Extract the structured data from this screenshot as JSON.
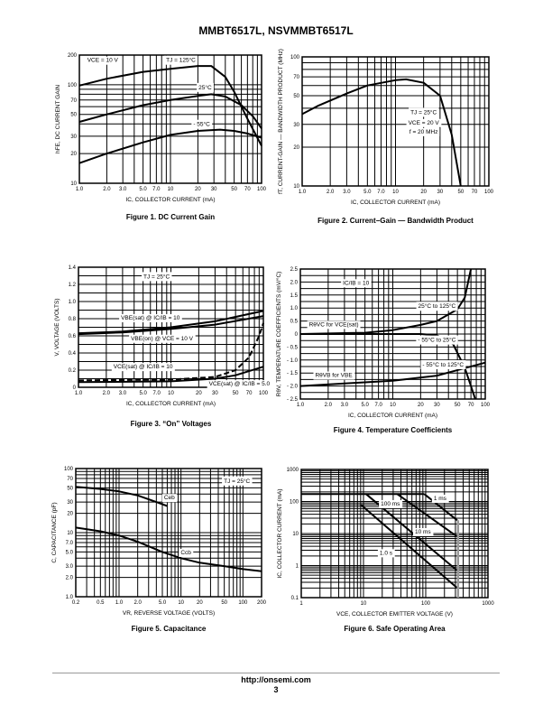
{
  "header": {
    "title": "MMBT6517L, NSVMMBT6517L"
  },
  "footer": {
    "url": "http://onsemi.com",
    "page": "3"
  },
  "chart_data": [
    {
      "type": "line",
      "title": "Figure 1. DC Current Gain",
      "xlabel": "IC, COLLECTOR CURRENT (mA)",
      "ylabel": "hFE, DC CURRENT GAIN",
      "xscale": "log",
      "yscale": "log",
      "xlim": [
        1,
        100
      ],
      "ylim": [
        10,
        200
      ],
      "xticks": [
        1,
        2,
        3,
        5,
        7,
        10,
        20,
        30,
        50,
        70,
        100
      ],
      "xtick_labels": [
        "1.0",
        "2.0",
        "3.0",
        "5.0",
        "7.0",
        "10",
        "20",
        "30",
        "50",
        "70",
        "100"
      ],
      "yticks": [
        10,
        20,
        30,
        50,
        70,
        100,
        200
      ],
      "ytick_labels": [
        "10",
        "20",
        "30",
        "50",
        "70",
        "100",
        "200"
      ],
      "annotations": [
        {
          "text": "VCE = 10 V",
          "at": [
            1.8,
            170
          ]
        },
        {
          "text": "TJ = 125°C",
          "at": [
            13,
            170
          ]
        },
        {
          "text": "25°C",
          "at": [
            24,
            90
          ]
        },
        {
          "text": "- 55°C",
          "at": [
            22,
            38
          ]
        }
      ],
      "series": [
        {
          "name": "TJ = 125°C",
          "x": [
            1,
            2,
            5,
            10,
            20,
            28,
            40,
            50,
            70,
            100
          ],
          "y": [
            98,
            115,
            135,
            145,
            155,
            155,
            120,
            85,
            45,
            24
          ]
        },
        {
          "name": "25°C",
          "x": [
            1,
            2,
            5,
            10,
            20,
            28,
            40,
            60,
            80,
            100
          ],
          "y": [
            42,
            50,
            62,
            70,
            77,
            80,
            76,
            62,
            48,
            36
          ]
        },
        {
          "name": "-55°C",
          "x": [
            1,
            2,
            5,
            10,
            20,
            35,
            50,
            70,
            100
          ],
          "y": [
            16,
            20,
            26,
            31,
            34,
            35,
            34,
            32,
            29
          ]
        }
      ]
    },
    {
      "type": "line",
      "title": "Figure 2. Current−Gain — Bandwidth Product",
      "xlabel": "IC, COLLECTOR CURRENT (mA)",
      "ylabel": "fT, CURRENT-GAIN — BANDWIDTH PRODUCT (MHz)",
      "xscale": "log",
      "yscale": "log",
      "xlim": [
        1,
        100
      ],
      "ylim": [
        10,
        100
      ],
      "xticks": [
        1,
        2,
        3,
        5,
        7,
        10,
        20,
        30,
        50,
        70,
        100
      ],
      "xtick_labels": [
        "1.0",
        "2.0",
        "3.0",
        "5.0",
        "7.0",
        "10",
        "20",
        "30",
        "50",
        "70",
        "100"
      ],
      "yticks": [
        10,
        20,
        30,
        50,
        70,
        100
      ],
      "ytick_labels": [
        "10",
        "20",
        "30",
        "50",
        "70",
        "100"
      ],
      "annotations": [
        {
          "text": "TJ = 25°C",
          "at": [
            20,
            36
          ]
        },
        {
          "text": "VCE = 20 V",
          "at": [
            20,
            30
          ]
        },
        {
          "text": "f = 20 MHz",
          "at": [
            20,
            25.5
          ]
        }
      ],
      "series": [
        {
          "name": "fT",
          "x": [
            1,
            1.5,
            3,
            5,
            10,
            13,
            20,
            30,
            40,
            50
          ],
          "y": [
            36,
            42,
            52,
            60,
            66,
            67,
            63,
            50,
            25,
            10
          ]
        }
      ]
    },
    {
      "type": "line",
      "title": "Figure 3. “On” Voltages",
      "xlabel": "IC, COLLECTOR CURRENT (mA)",
      "ylabel": "V, VOLTAGE (VOLTS)",
      "xscale": "log",
      "yscale": "linear",
      "xlim": [
        1,
        100
      ],
      "ylim": [
        0,
        1.4
      ],
      "xticks": [
        1,
        2,
        3,
        5,
        7,
        10,
        20,
        30,
        50,
        70,
        100
      ],
      "xtick_labels": [
        "1.0",
        "2.0",
        "3.0",
        "5.0",
        "7.0",
        "10",
        "20",
        "30",
        "50",
        "70",
        "100"
      ],
      "yticks": [
        0,
        0.2,
        0.4,
        0.6,
        0.8,
        1.0,
        1.2,
        1.4
      ],
      "ytick_labels": [
        "0",
        "0.2",
        "0.4",
        "0.6",
        "0.8",
        "1.0",
        "1.2",
        "1.4"
      ],
      "annotations": [
        {
          "text": "TJ = 25°C",
          "at": [
            7,
            1.27
          ]
        },
        {
          "text": "VBE(sat) @ IC/IB = 10",
          "at": [
            6,
            0.79
          ]
        },
        {
          "text": "VBE(on) @ VCE = 10 V",
          "at": [
            8,
            0.55
          ]
        },
        {
          "text": "VCE(sat) @ IC/IB = 10",
          "at": [
            5,
            0.22
          ]
        },
        {
          "text": "VCE(sat) @ IC/IB = 5.0",
          "at": [
            55,
            0.02
          ]
        }
      ],
      "series": [
        {
          "name": "VBE(sat) @ IC/IB = 10",
          "x": [
            1,
            3,
            10,
            30,
            100
          ],
          "y": [
            0.63,
            0.65,
            0.7,
            0.77,
            0.89
          ]
        },
        {
          "name": "VBE(on) @ VCE = 10 V",
          "x": [
            1,
            3,
            10,
            30,
            100
          ],
          "y": [
            0.62,
            0.64,
            0.68,
            0.73,
            0.83
          ]
        },
        {
          "name": "VCE(sat) @ IC/IB = 10",
          "dashed": true,
          "x": [
            1,
            10,
            30,
            50,
            70,
            90,
            100
          ],
          "y": [
            0.08,
            0.09,
            0.12,
            0.2,
            0.35,
            0.6,
            0.75
          ]
        },
        {
          "name": "VCE(sat) @ IC/IB = 5.0",
          "x": [
            1,
            10,
            30,
            50,
            100
          ],
          "y": [
            0.06,
            0.07,
            0.1,
            0.14,
            0.24
          ]
        }
      ]
    },
    {
      "type": "line",
      "title": "Figure 4. Temperature Coefficients",
      "xlabel": "IC, COLLECTOR CURRENT (mA)",
      "ylabel": "RθV, TEMPERATURE COEFFICIENTS (mV/°C)",
      "xscale": "log",
      "yscale": "linear",
      "xlim": [
        1,
        100
      ],
      "ylim": [
        -2.5,
        2.5
      ],
      "xticks": [
        1,
        2,
        3,
        5,
        7,
        10,
        20,
        30,
        50,
        70,
        100
      ],
      "xtick_labels": [
        "1.0",
        "2.0",
        "3.0",
        "5.0",
        "7.0",
        "10",
        "20",
        "30",
        "50",
        "70",
        "100"
      ],
      "yticks": [
        -2.5,
        -2,
        -1.5,
        -1,
        -0.5,
        0,
        0.5,
        1,
        1.5,
        2,
        2.5
      ],
      "ytick_labels": [
        "- 2.5",
        "- 2.0",
        "- 1.5",
        "- 1.0",
        "- 0.5",
        "0",
        "0.5",
        "1.0",
        "1.5",
        "2.0",
        "2.5"
      ],
      "annotations": [
        {
          "text": "IC/IB = 10",
          "at": [
            4,
            1.9
          ]
        },
        {
          "text": "25°C to 125°C",
          "at": [
            30,
            1.0
          ]
        },
        {
          "text": "RθVC for VCE(sat)",
          "at": [
            2.3,
            0.3
          ]
        },
        {
          "text": "- 55°C to 25°C",
          "at": [
            30,
            -0.3
          ]
        },
        {
          "text": "- 55°C to 125°C",
          "at": [
            35,
            -1.25
          ]
        },
        {
          "text": "RθVB for VBE",
          "at": [
            2.3,
            -1.65
          ]
        }
      ],
      "series": [
        {
          "name": "25°C to 125°C",
          "x": [
            1,
            5,
            10,
            20,
            30,
            50,
            60,
            70
          ],
          "y": [
            0,
            0.05,
            0.15,
            0.35,
            0.5,
            0.95,
            1.4,
            2.5
          ]
        },
        {
          "name": "-55°C to 25°C",
          "x": [
            1,
            20,
            30,
            45,
            60,
            70,
            78
          ],
          "y": [
            0,
            0,
            -0.05,
            -0.4,
            -1.3,
            -2,
            -2.5
          ]
        },
        {
          "name": "-55°C to 125°C",
          "x": [
            1,
            3,
            10,
            30,
            100
          ],
          "y": [
            -2,
            -1.9,
            -1.8,
            -1.6,
            -1.1
          ]
        }
      ]
    },
    {
      "type": "line",
      "title": "Figure 5. Capacitance",
      "xlabel": "VR, REVERSE VOLTAGE (VOLTS)",
      "ylabel": "C, CAPACITANCE (pF)",
      "xscale": "log",
      "yscale": "log",
      "xlim": [
        0.2,
        200
      ],
      "ylim": [
        1,
        100
      ],
      "xticks": [
        0.2,
        0.5,
        1,
        2,
        5,
        10,
        20,
        50,
        100,
        200
      ],
      "xtick_labels": [
        "0.2",
        "0.5",
        "1.0",
        "2.0",
        "5.0",
        "10",
        "20",
        "50",
        "100",
        "200"
      ],
      "yticks": [
        1,
        2,
        3,
        5,
        7,
        10,
        20,
        30,
        50,
        70,
        100
      ],
      "ytick_labels": [
        "1.0",
        "2.0",
        "3.0",
        "5.0",
        "7.0",
        "10",
        "20",
        "30",
        "50",
        "70",
        "100"
      ],
      "annotations": [
        {
          "text": "TJ = 25°C",
          "at": [
            80,
            60
          ]
        },
        {
          "text": "Ceb",
          "at": [
            6.5,
            33
          ]
        },
        {
          "text": "Ccb",
          "at": [
            12,
            4.6
          ]
        }
      ],
      "series": [
        {
          "name": "Ceb",
          "x": [
            0.2,
            0.5,
            1,
            2,
            4,
            6
          ],
          "y": [
            52,
            48,
            44,
            38,
            30,
            26
          ]
        },
        {
          "name": "Ccb",
          "x": [
            0.2,
            0.5,
            1,
            2,
            5,
            10,
            20,
            50,
            100,
            200
          ],
          "y": [
            12,
            10.5,
            9,
            7.2,
            5,
            4,
            3.4,
            3,
            2.7,
            2.5
          ]
        }
      ]
    },
    {
      "type": "line",
      "title": "Figure 6. Safe Operating Area",
      "xlabel": "VCE, COLLECTOR EMITTER VOLTAGE (V)",
      "ylabel": "IC, COLLECTOR CURRENT (mA)",
      "xscale": "log",
      "yscale": "log",
      "xlim": [
        1,
        1000
      ],
      "ylim": [
        0.1,
        1000
      ],
      "xticks": [
        1,
        10,
        100,
        1000
      ],
      "xtick_labels": [
        "1",
        "10",
        "100",
        "1000"
      ],
      "yticks": [
        0.1,
        1,
        10,
        100,
        1000
      ],
      "ytick_labels": [
        "0.1",
        "1",
        "10",
        "100",
        "1000"
      ],
      "annotations": [
        {
          "text": "1 ms",
          "at": [
            170,
            110
          ]
        },
        {
          "text": "100 ms",
          "at": [
            27,
            75
          ]
        },
        {
          "text": "10 ms",
          "at": [
            90,
            10
          ]
        },
        {
          "text": "1.0 s",
          "at": [
            23,
            2.2
          ]
        }
      ],
      "series": [
        {
          "name": "limit",
          "x": [
            1,
            95
          ],
          "y": [
            170,
            170
          ]
        },
        {
          "name": "1 ms",
          "x": [
            95,
            320
          ],
          "y": [
            170,
            26
          ]
        },
        {
          "name": "100 ms",
          "x": [
            11,
            320
          ],
          "y": [
            170,
            0.7
          ]
        },
        {
          "name": "10 ms",
          "x": [
            35,
            320
          ],
          "y": [
            170,
            8
          ]
        },
        {
          "name": "1.0 s",
          "x": [
            9,
            320
          ],
          "y": [
            80,
            0.2
          ]
        },
        {
          "name": "breakdown",
          "gray": true,
          "x": [
            330,
            330
          ],
          "y": [
            26,
            0.1
          ]
        }
      ]
    }
  ]
}
